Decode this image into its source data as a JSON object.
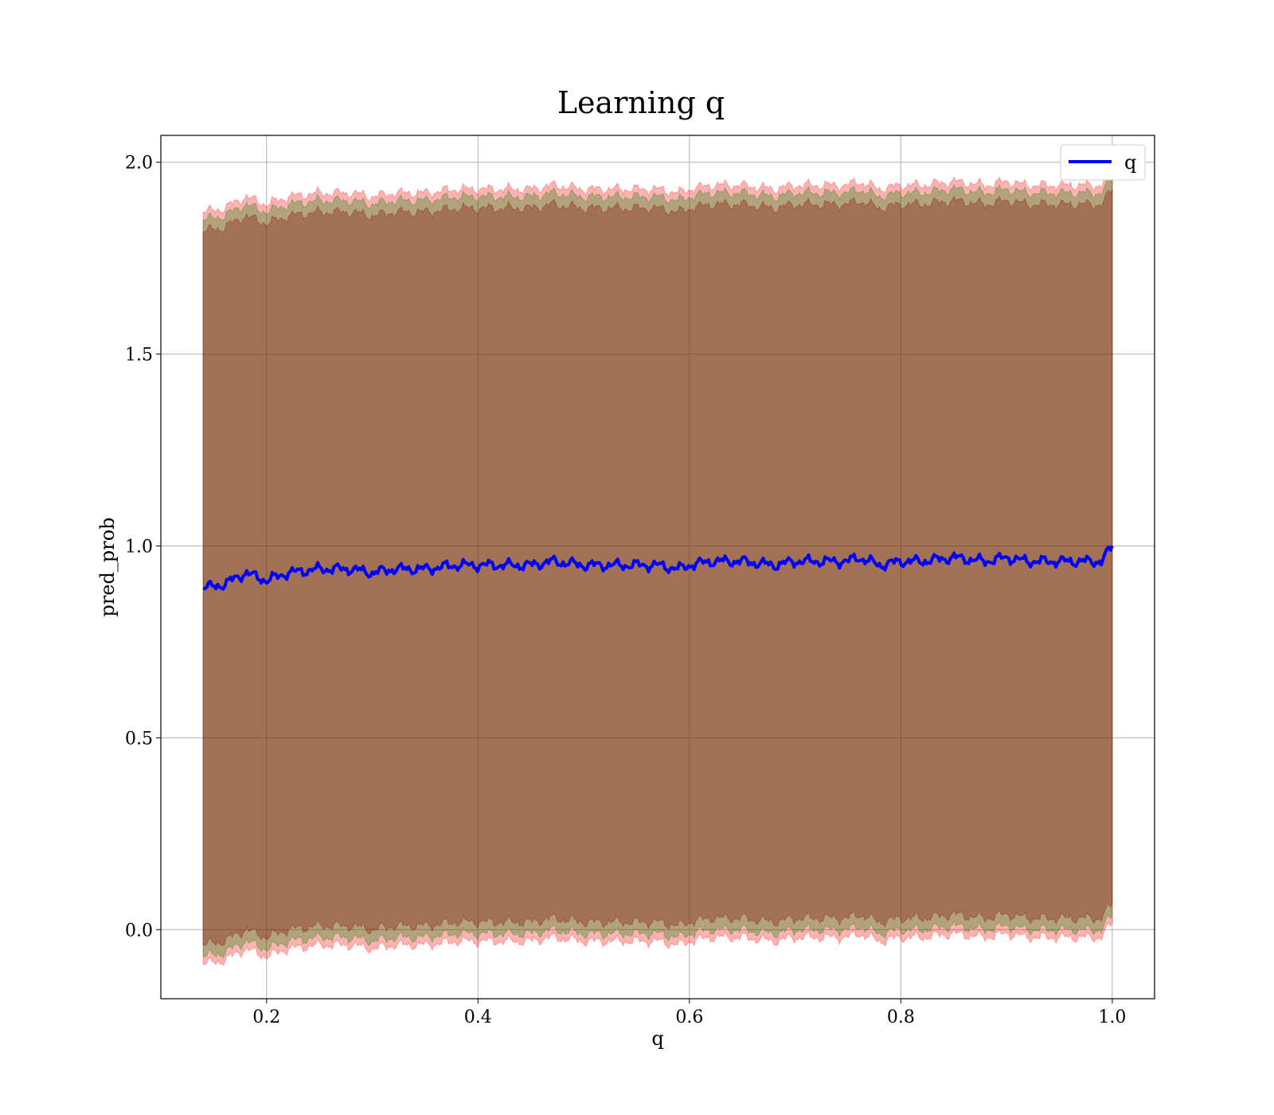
{
  "chart_data": {
    "type": "line",
    "title": "Learning q",
    "xlabel": "q",
    "ylabel": "pred_prob",
    "xlim": [
      0.1,
      1.04
    ],
    "ylim": [
      -0.18,
      2.07
    ],
    "xticks": [
      0.2,
      0.4,
      0.6,
      0.8,
      1.0
    ],
    "xtick_labels": [
      "0.2",
      "0.4",
      "0.6",
      "0.8",
      "1.0"
    ],
    "yticks": [
      0.0,
      0.5,
      1.0,
      1.5,
      2.0
    ],
    "ytick_labels": [
      "0.0",
      "0.5",
      "1.0",
      "1.5",
      "2.0"
    ],
    "grid": true,
    "legend": {
      "position": "top-right",
      "entries": [
        {
          "label": "q",
          "color": "#0000ff"
        }
      ]
    },
    "series": [
      {
        "name": "q",
        "color": "#0000ff",
        "x": [
          0.14,
          0.16,
          0.18,
          0.2,
          0.22,
          0.25,
          0.28,
          0.3,
          0.32,
          0.35,
          0.38,
          0.4,
          0.43,
          0.45,
          0.47,
          0.5,
          0.52,
          0.55,
          0.57,
          0.59,
          0.6,
          0.62,
          0.65,
          0.68,
          0.7,
          0.73,
          0.75,
          0.76,
          0.78,
          0.8,
          0.82,
          0.85,
          0.88,
          0.9,
          0.92,
          0.95,
          0.97,
          0.99,
          1.0
        ],
        "values": [
          0.89,
          0.9,
          0.93,
          0.91,
          0.93,
          0.94,
          0.94,
          0.93,
          0.94,
          0.94,
          0.95,
          0.95,
          0.95,
          0.95,
          0.96,
          0.95,
          0.95,
          0.95,
          0.95,
          0.94,
          0.95,
          0.96,
          0.96,
          0.95,
          0.96,
          0.96,
          0.96,
          0.97,
          0.95,
          0.96,
          0.96,
          0.97,
          0.96,
          0.97,
          0.96,
          0.96,
          0.96,
          0.96,
          1.0
        ]
      }
    ],
    "bands": [
      {
        "color": "#ff0000",
        "opacity": 0.3,
        "offset_lower": -0.98,
        "offset_upper": 0.98
      },
      {
        "color": "#008000",
        "opacity": 0.3,
        "offset_lower": -0.96,
        "offset_upper": 0.96
      },
      {
        "color": "#800000",
        "opacity": 0.3,
        "offset_lower": -0.93,
        "offset_upper": 0.93
      }
    ]
  }
}
